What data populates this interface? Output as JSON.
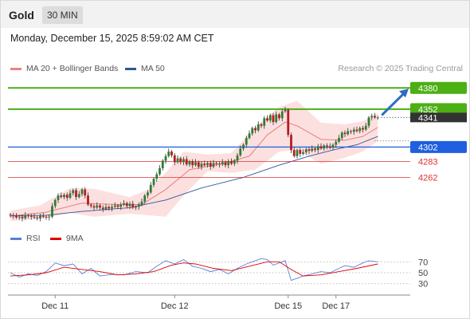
{
  "header": {
    "instrument": "Gold",
    "timeframe": "30 MIN"
  },
  "datetime": "Monday, December 15, 2025 8:59:02 AM CET",
  "price_legend": [
    {
      "label": "MA 20 + Bollinger Bands",
      "color": "#f08080"
    },
    {
      "label": "MA 50",
      "color": "#2f5597"
    }
  ],
  "credit": "Research © 2025 Trading Central",
  "rsi_legend": [
    {
      "label": "RSI",
      "color": "#5b7fd6"
    },
    {
      "label": "9MA",
      "color": "#e00000"
    }
  ],
  "colors": {
    "green": "#4caf14",
    "blue": "#1f5fe0",
    "red": "#e03030",
    "current": "#333333",
    "bull": "#2e7d32",
    "bear": "#b71c1c",
    "band": "#f9c6c6"
  },
  "chart_data": [
    {
      "type": "candlestick",
      "y_range": [
        4195,
        4395
      ],
      "levels": [
        {
          "label": "4380",
          "value": 4380,
          "color": "#4caf14",
          "style": "solid-thick"
        },
        {
          "label": "4352",
          "value": 4352,
          "color": "#4caf14",
          "style": "solid-thick"
        },
        {
          "label": "4302",
          "value": 4302,
          "color": "#1f5fe0",
          "style": "solid"
        },
        {
          "label": "4283",
          "value": 4283,
          "color": "#e03030",
          "style": "solid-thin"
        },
        {
          "label": "4262",
          "value": 4262,
          "color": "#e03030",
          "style": "solid-thin"
        }
      ],
      "current_price": {
        "label": "4341",
        "value": 4341
      },
      "closes": [
        4212,
        4211,
        4209,
        4210,
        4208,
        4212,
        4211,
        4210,
        4209,
        4208,
        4211,
        4210,
        4209,
        4210,
        4224,
        4232,
        4238,
        4236,
        4239,
        4235,
        4241,
        4245,
        4236,
        4240,
        4246,
        4238,
        4226,
        4224,
        4222,
        4225,
        4222,
        4220,
        4223,
        4221,
        4223,
        4225,
        4223,
        4226,
        4228,
        4224,
        4227,
        4222,
        4223,
        4226,
        4230,
        4238,
        4242,
        4252,
        4260,
        4266,
        4274,
        4284,
        4290,
        4296,
        4291,
        4282,
        4287,
        4282,
        4286,
        4279,
        4283,
        4278,
        4282,
        4276,
        4280,
        4278,
        4281,
        4276,
        4281,
        4280,
        4279,
        4282,
        4278,
        4283,
        4280,
        4284,
        4291,
        4300,
        4305,
        4314,
        4320,
        4327,
        4324,
        4332,
        4330,
        4340,
        4337,
        4344,
        4335,
        4345,
        4340,
        4349,
        4351,
        4318,
        4298,
        4290,
        4298,
        4293,
        4295,
        4299,
        4297,
        4300,
        4298,
        4303,
        4300,
        4304,
        4303,
        4301,
        4305,
        4309,
        4314,
        4321,
        4319,
        4323,
        4322,
        4325,
        4323,
        4327,
        4325,
        4330,
        4341,
        4343,
        4341,
        4341
      ],
      "ma50": [
        [
          0,
          4211
        ],
        [
          12,
          4212
        ],
        [
          24,
          4217
        ],
        [
          40,
          4222
        ],
        [
          52,
          4232
        ],
        [
          64,
          4248
        ],
        [
          78,
          4262
        ],
        [
          90,
          4278
        ],
        [
          100,
          4290
        ],
        [
          108,
          4298
        ],
        [
          116,
          4305
        ],
        [
          123,
          4316
        ]
      ],
      "ma20": [
        [
          0,
          4211
        ],
        [
          12,
          4216
        ],
        [
          24,
          4228
        ],
        [
          36,
          4226
        ],
        [
          44,
          4226
        ],
        [
          52,
          4246
        ],
        [
          60,
          4272
        ],
        [
          72,
          4281
        ],
        [
          80,
          4290
        ],
        [
          86,
          4318
        ],
        [
          92,
          4335
        ],
        [
          96,
          4330
        ],
        [
          104,
          4312
        ],
        [
          112,
          4311
        ],
        [
          118,
          4316
        ],
        [
          123,
          4328
        ]
      ],
      "band_upper": [
        [
          0,
          4218
        ],
        [
          10,
          4225
        ],
        [
          20,
          4248
        ],
        [
          28,
          4247
        ],
        [
          40,
          4236
        ],
        [
          46,
          4246
        ],
        [
          52,
          4268
        ],
        [
          58,
          4296
        ],
        [
          66,
          4292
        ],
        [
          74,
          4294
        ],
        [
          82,
          4328
        ],
        [
          90,
          4355
        ],
        [
          96,
          4363
        ],
        [
          104,
          4334
        ],
        [
          112,
          4332
        ],
        [
          118,
          4336
        ],
        [
          123,
          4347
        ]
      ],
      "band_lower": [
        [
          0,
          4204
        ],
        [
          10,
          4207
        ],
        [
          20,
          4215
        ],
        [
          28,
          4210
        ],
        [
          40,
          4214
        ],
        [
          46,
          4212
        ],
        [
          52,
          4210
        ],
        [
          58,
          4238
        ],
        [
          66,
          4270
        ],
        [
          74,
          4268
        ],
        [
          82,
          4272
        ],
        [
          90,
          4296
        ],
        [
          96,
          4298
        ],
        [
          104,
          4280
        ],
        [
          112,
          4288
        ],
        [
          118,
          4296
        ],
        [
          123,
          4310
        ]
      ],
      "x_ticks": [
        {
          "label": "Dec 11",
          "index": 15
        },
        {
          "label": "Dec 12",
          "index": 55
        },
        {
          "label": "Dec 15",
          "index": 93
        },
        {
          "label": "Dec 17",
          "index": 109
        }
      ]
    },
    {
      "type": "line",
      "title": "RSI",
      "y_range": [
        15,
        85
      ],
      "y_ticks": [
        {
          "label": "70",
          "value": 70
        },
        {
          "label": "50",
          "value": 50
        },
        {
          "label": "30",
          "value": 30
        }
      ],
      "rsi": [
        [
          0,
          50
        ],
        [
          3,
          42
        ],
        [
          6,
          48
        ],
        [
          9,
          45
        ],
        [
          12,
          52
        ],
        [
          15,
          68
        ],
        [
          18,
          63
        ],
        [
          21,
          66
        ],
        [
          24,
          48
        ],
        [
          27,
          58
        ],
        [
          30,
          44
        ],
        [
          34,
          47
        ],
        [
          38,
          46
        ],
        [
          42,
          52
        ],
        [
          46,
          50
        ],
        [
          49,
          62
        ],
        [
          52,
          72
        ],
        [
          55,
          66
        ],
        [
          58,
          74
        ],
        [
          61,
          62
        ],
        [
          64,
          58
        ],
        [
          67,
          52
        ],
        [
          70,
          56
        ],
        [
          73,
          48
        ],
        [
          76,
          58
        ],
        [
          79,
          66
        ],
        [
          82,
          72
        ],
        [
          84,
          76
        ],
        [
          86,
          74
        ],
        [
          88,
          64
        ],
        [
          90,
          68
        ],
        [
          92,
          72
        ],
        [
          94,
          36
        ],
        [
          96,
          40
        ],
        [
          98,
          44
        ],
        [
          101,
          48
        ],
        [
          104,
          52
        ],
        [
          107,
          50
        ],
        [
          110,
          58
        ],
        [
          112,
          63
        ],
        [
          115,
          60
        ],
        [
          118,
          68
        ],
        [
          120,
          72
        ],
        [
          123,
          70
        ]
      ],
      "rsi_ma": [
        [
          0,
          44
        ],
        [
          6,
          46
        ],
        [
          12,
          50
        ],
        [
          18,
          60
        ],
        [
          24,
          56
        ],
        [
          30,
          52
        ],
        [
          36,
          46
        ],
        [
          42,
          48
        ],
        [
          48,
          52
        ],
        [
          54,
          64
        ],
        [
          58,
          68
        ],
        [
          62,
          66
        ],
        [
          68,
          58
        ],
        [
          74,
          54
        ],
        [
          80,
          62
        ],
        [
          86,
          70
        ],
        [
          90,
          70
        ],
        [
          94,
          56
        ],
        [
          98,
          44
        ],
        [
          104,
          46
        ],
        [
          110,
          52
        ],
        [
          116,
          58
        ],
        [
          123,
          66
        ]
      ]
    }
  ]
}
